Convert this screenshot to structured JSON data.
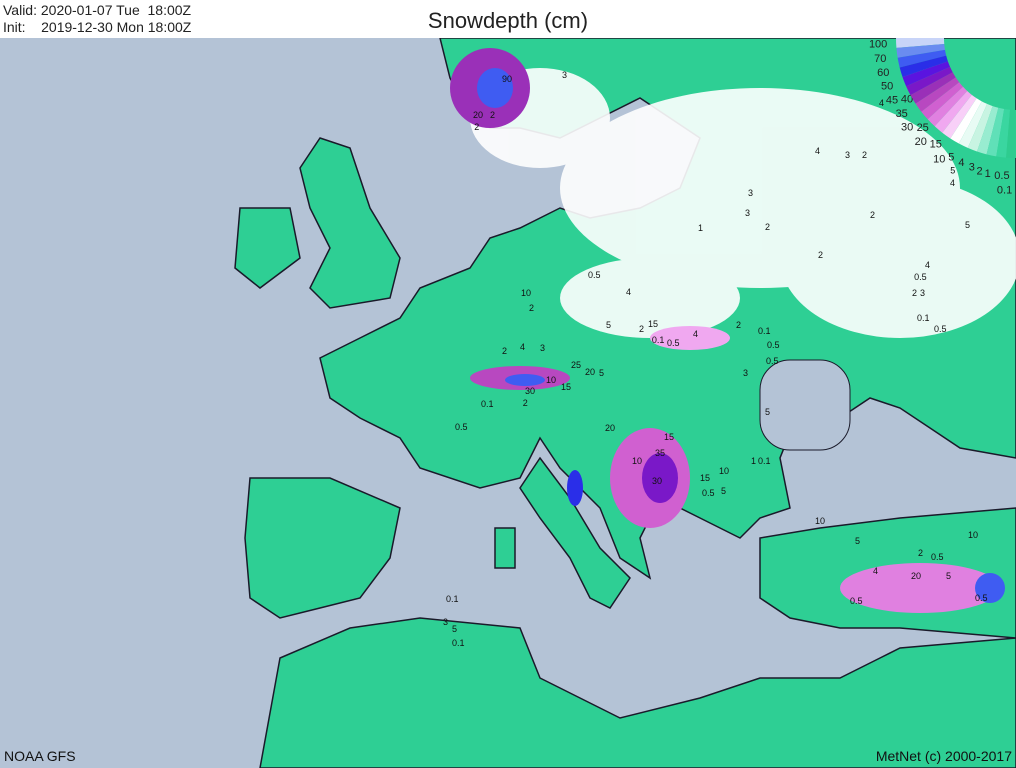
{
  "header": {
    "valid": "Valid: 2020-01-07 Tue  18:00Z",
    "init": "Init:    2019-12-30 Mon 18:00Z",
    "title": "Snowdepth (cm)"
  },
  "footer": {
    "source": "NOAA GFS",
    "copyright": "MetNet (c) 2000-2017"
  },
  "legend": {
    "labels": [
      "100",
      "70",
      "60",
      "50",
      "45",
      "40",
      "35",
      "30",
      "25",
      "20",
      "15",
      "10",
      "5",
      "4",
      "3",
      "2",
      "1",
      "0.5",
      "0.1"
    ],
    "colors": [
      "#c8d4f8",
      "#6a8cf0",
      "#3f5cf2",
      "#2a2ee8",
      "#5a14e0",
      "#7a18c8",
      "#9a30b8",
      "#b848c0",
      "#d060d0",
      "#e080e0",
      "#f0a8f0",
      "#f8d0f8",
      "#ffffff",
      "#e8fbf4",
      "#c8f4e2",
      "#98ecd0",
      "#60e0b8",
      "#3ad6a0",
      "#2ecc8f"
    ]
  },
  "colors": {
    "sea": "#b4c3d6",
    "land": "#2ecf94",
    "snow": "#ffffff",
    "coast": "#1a1a2a"
  },
  "snow_labels": [
    "90",
    "3",
    "2",
    "20",
    "2",
    "4",
    "3",
    "2",
    "4",
    "5",
    "4",
    "3",
    "3",
    "2",
    "2",
    "5",
    "4",
    "0.5",
    "0.1",
    "0.5",
    "2",
    "3",
    "2",
    "1",
    "0.5",
    "10",
    "2",
    "5",
    "4",
    "15",
    "2",
    "4",
    "0.5",
    "0.1",
    "2",
    "4",
    "3",
    "25",
    "20",
    "5",
    "30",
    "15",
    "10",
    "2",
    "0.1",
    "0.5",
    "3",
    "0.5",
    "0.1",
    "0.5",
    "2",
    "5",
    "20",
    "15",
    "35",
    "10",
    "30",
    "15",
    "10",
    "5",
    "0.5",
    "1",
    "0.1",
    "10",
    "5",
    "4",
    "2",
    "10",
    "5",
    "20",
    "0.5",
    "0.5",
    "0.5",
    "3",
    "5",
    "0.1",
    "0.1"
  ]
}
